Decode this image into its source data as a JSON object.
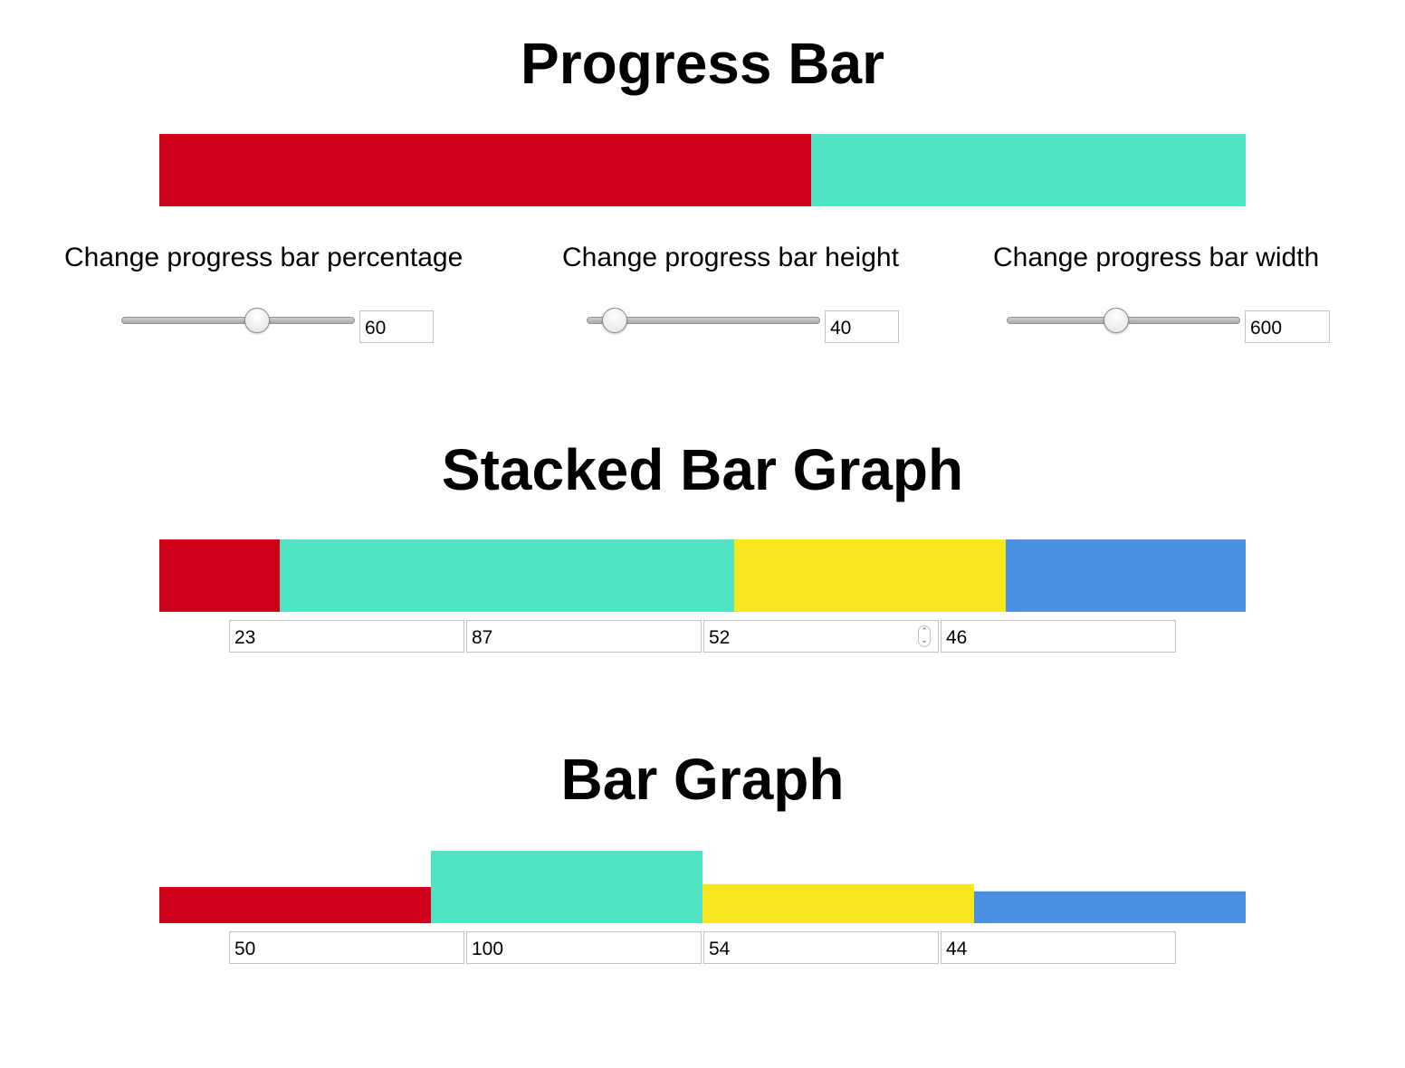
{
  "progress": {
    "title": "Progress Bar",
    "percentage": 60,
    "height": 40,
    "width": 600,
    "fill_color": "#d0021b",
    "rest_color": "#50e3c2",
    "controls": {
      "percentage_label": "Change progress bar percentage",
      "height_label": "Change progress bar height",
      "width_label": "Change progress bar width",
      "percentage_value": "60",
      "height_value": "40",
      "width_value": "600",
      "percentage_slider_fraction": 0.58,
      "height_slider_fraction": 0.12,
      "width_slider_fraction": 0.47
    }
  },
  "stacked": {
    "title": "Stacked Bar Graph",
    "input_values": [
      "23",
      "87",
      "52",
      "46"
    ]
  },
  "bargraph": {
    "title": "Bar Graph",
    "input_values": [
      "50",
      "100",
      "54",
      "44"
    ]
  },
  "chart_data": [
    {
      "type": "bar",
      "stacked": true,
      "values": [
        23,
        87,
        52,
        46
      ],
      "colors": [
        "#d0021b",
        "#50e3c2",
        "#f8e71c",
        "#4a90e2"
      ]
    },
    {
      "type": "bar",
      "values": [
        50,
        100,
        54,
        44
      ],
      "colors": [
        "#d0021b",
        "#50e3c2",
        "#f8e71c",
        "#4a90e2"
      ]
    }
  ]
}
